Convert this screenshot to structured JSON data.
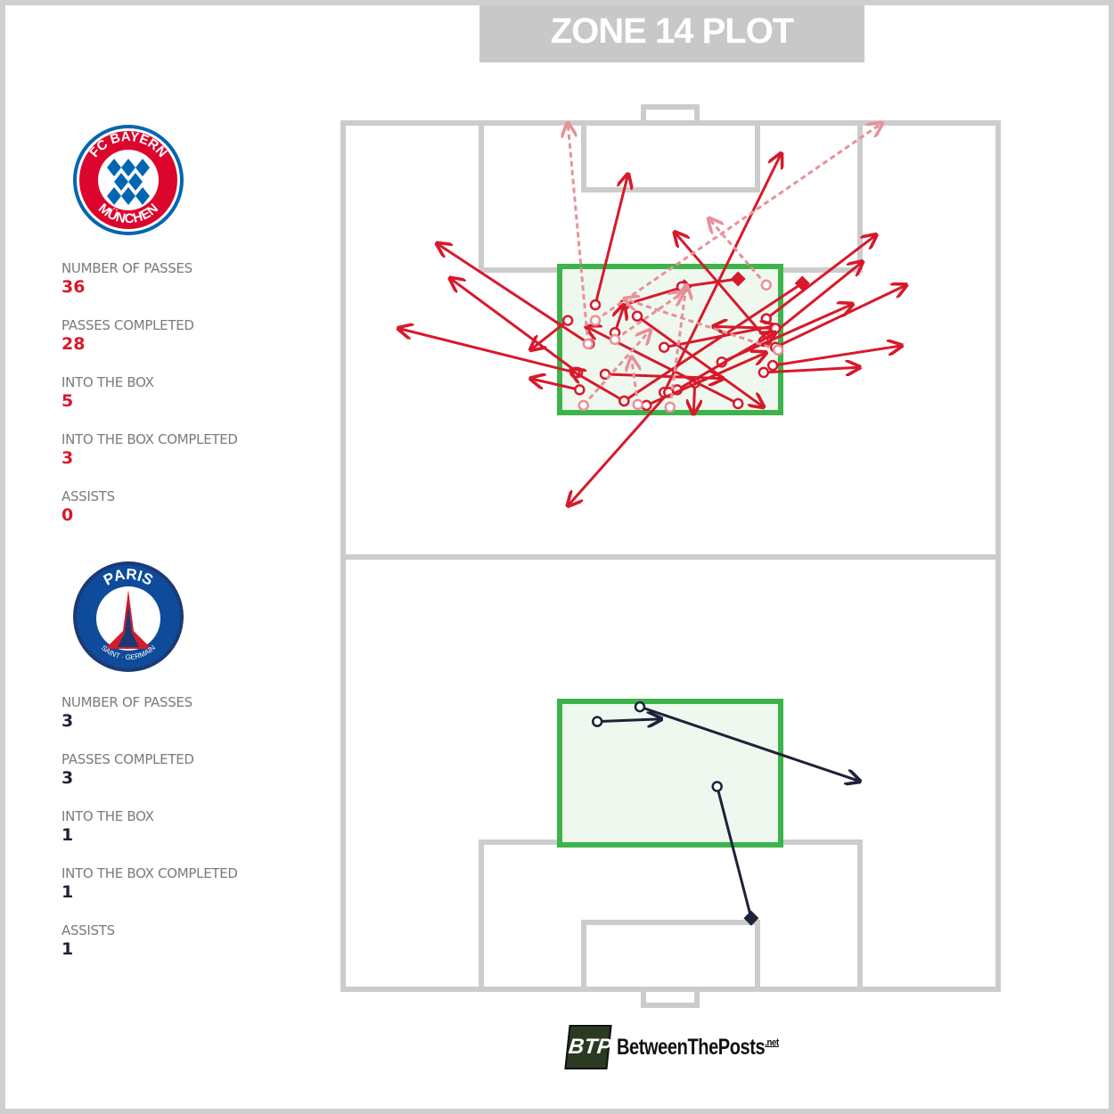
{
  "title": "ZONE 14 PLOT",
  "colors": {
    "home": "#d7192b",
    "away": "#1e2238",
    "zone": "#3cb44b",
    "zone_fill": "#eef8ee",
    "pitch_lines": "#cccccc"
  },
  "teams": [
    {
      "name": "FC Bayern München",
      "logo_text_top": "FC BAYERN",
      "logo_text_bottom": "MÜNCHEN",
      "stats": [
        {
          "label": "NUMBER OF PASSES",
          "value": "36"
        },
        {
          "label": "PASSES COMPLETED",
          "value": "28"
        },
        {
          "label": "INTO THE BOX",
          "value": "5"
        },
        {
          "label": "INTO THE BOX COMPLETED",
          "value": "3"
        },
        {
          "label": "ASSISTS",
          "value": "0"
        }
      ]
    },
    {
      "name": "Paris Saint-Germain",
      "logo_text_top": "PARIS",
      "logo_text_bottom": "SAINT · GERMAIN",
      "stats": [
        {
          "label": "NUMBER OF PASSES",
          "value": "3"
        },
        {
          "label": "PASSES COMPLETED",
          "value": "3"
        },
        {
          "label": "INTO THE BOX",
          "value": "1"
        },
        {
          "label": "INTO THE BOX COMPLETED",
          "value": "1"
        },
        {
          "label": "ASSISTS",
          "value": "1"
        }
      ]
    }
  ],
  "chart_data": {
    "type": "pass-map",
    "pitch_units": "percent of pitch width (x) and length (y)",
    "passes_home": [
      {
        "from": [
          38.5,
          21.0
        ],
        "to": [
          43.5,
          5.9
        ],
        "completed": true
      },
      {
        "from": [
          37.6,
          25.5
        ],
        "to": [
          14.3,
          13.9
        ],
        "completed": true
      },
      {
        "from": [
          34.3,
          22.8
        ],
        "to": [
          28.6,
          26.2
        ],
        "completed": true
      },
      {
        "from": [
          35.8,
          28.8
        ],
        "to": [
          16.3,
          17.9
        ],
        "completed": true
      },
      {
        "from": [
          35.4,
          28.8
        ],
        "to": [
          8.4,
          23.7
        ],
        "completed": true
      },
      {
        "from": [
          49.0,
          31.1
        ],
        "to": [
          66.9,
          3.5
        ],
        "completed": true
      },
      {
        "from": [
          49.7,
          31.1
        ],
        "to": [
          34.3,
          44.2
        ],
        "completed": true
      },
      {
        "from": [
          44.9,
          22.3
        ],
        "to": [
          64.2,
          32.8
        ],
        "completed": true
      },
      {
        "from": [
          64.6,
          24.9
        ],
        "to": [
          50.6,
          12.6
        ],
        "completed": true
      },
      {
        "from": [
          42.9,
          21.0
        ],
        "to": [
          52.1,
          18.9
        ],
        "completed": true,
        "key": true
      },
      {
        "from": [
          51.7,
          18.9
        ],
        "to": [
          60.3,
          18.0
        ],
        "completed": true,
        "key": true
      },
      {
        "from": [
          64.6,
          22.6
        ],
        "to": [
          81.4,
          12.9
        ],
        "completed": true
      },
      {
        "from": [
          64.2,
          25.2
        ],
        "to": [
          79.3,
          16.0
        ],
        "completed": true
      },
      {
        "from": [
          66.0,
          25.9
        ],
        "to": [
          86.0,
          18.7
        ],
        "completed": true
      },
      {
        "from": [
          65.6,
          28.0
        ],
        "to": [
          85.3,
          25.7
        ],
        "completed": true
      },
      {
        "from": [
          64.2,
          28.8
        ],
        "to": [
          78.9,
          28.2
        ],
        "completed": true
      },
      {
        "from": [
          57.8,
          27.6
        ],
        "to": [
          77.8,
          20.9
        ],
        "completed": true
      },
      {
        "from": [
          42.9,
          32.1
        ],
        "to": [
          70.1,
          18.5
        ],
        "completed": true,
        "key": true
      },
      {
        "from": [
          49.0,
          25.9
        ],
        "to": [
          66.0,
          23.4
        ],
        "completed": true
      },
      {
        "from": [
          66.0,
          23.7
        ],
        "to": [
          56.5,
          23.5
        ],
        "completed": true
      },
      {
        "from": [
          53.7,
          30.0
        ],
        "to": [
          53.5,
          33.6
        ],
        "completed": true
      },
      {
        "from": [
          60.3,
          32.4
        ],
        "to": [
          37.1,
          23.5
        ],
        "completed": true
      },
      {
        "from": [
          36.1,
          30.8
        ],
        "to": [
          28.6,
          29.5
        ],
        "completed": true
      },
      {
        "from": [
          41.5,
          24.2
        ],
        "to": [
          42.9,
          21.0
        ],
        "completed": true
      },
      {
        "from": [
          51.0,
          30.8
        ],
        "to": [
          66.0,
          24.2
        ],
        "completed": true
      },
      {
        "from": [
          42.9,
          32.1
        ],
        "to": [
          34.7,
          28.5
        ],
        "completed": true
      },
      {
        "from": [
          46.3,
          32.6
        ],
        "to": [
          64.6,
          26.5
        ],
        "completed": true
      },
      {
        "from": [
          40.0,
          29.0
        ],
        "to": [
          58.0,
          29.5
        ],
        "completed": true
      },
      {
        "from": [
          38.5,
          22.8
        ],
        "to": [
          82.3,
          0.0
        ],
        "completed": false
      },
      {
        "from": [
          37.4,
          25.5
        ],
        "to": [
          34.3,
          0.0
        ],
        "completed": false
      },
      {
        "from": [
          64.6,
          18.7
        ],
        "to": [
          55.8,
          11.0
        ],
        "completed": false
      },
      {
        "from": [
          36.7,
          32.6
        ],
        "to": [
          46.9,
          23.9
        ],
        "completed": false
      },
      {
        "from": [
          49.9,
          32.8
        ],
        "to": [
          52.4,
          18.7
        ],
        "completed": false
      },
      {
        "from": [
          66.4,
          26.2
        ],
        "to": [
          42.9,
          20.3
        ],
        "completed": false
      },
      {
        "from": [
          41.5,
          25.0
        ],
        "to": [
          52.0,
          19.5
        ],
        "completed": false
      },
      {
        "from": [
          45.0,
          32.5
        ],
        "to": [
          44.0,
          27.0
        ],
        "completed": false
      }
    ],
    "passes_away": [
      {
        "from": [
          38.8,
          69.1
        ],
        "to": [
          48.6,
          68.8
        ],
        "completed": true
      },
      {
        "from": [
          45.3,
          67.4
        ],
        "to": [
          78.9,
          76.0
        ],
        "completed": true
      },
      {
        "from": [
          57.1,
          76.6
        ],
        "to": [
          62.3,
          91.8
        ],
        "completed": true,
        "key": true
      }
    ]
  },
  "footer": {
    "badge": "BTP",
    "brand": "BetweenThePosts",
    "suffix": ".net"
  }
}
